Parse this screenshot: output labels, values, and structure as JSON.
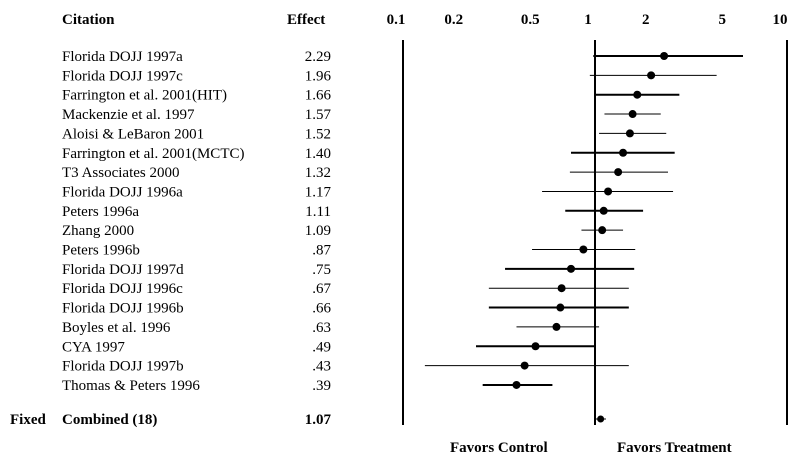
{
  "chart_data": {
    "type": "forest",
    "headers": {
      "citation": "Citation",
      "effect": "Effect"
    },
    "x_ticks": [
      {
        "label": "0.1",
        "value": 0.1
      },
      {
        "label": "0.2",
        "value": 0.2
      },
      {
        "label": "0.5",
        "value": 0.5
      },
      {
        "label": "1",
        "value": 1
      },
      {
        "label": "2",
        "value": 2
      },
      {
        "label": "5",
        "value": 5
      },
      {
        "label": "10",
        "value": 10
      }
    ],
    "scale": "log",
    "reference_line": 1,
    "studies": [
      {
        "citation": "Florida DOJJ 1997a",
        "effect_label": "2.29",
        "effect": 2.29,
        "ci": [
          0.98,
          5.9
        ],
        "weight": "heavy"
      },
      {
        "citation": "Florida DOJJ 1997c",
        "effect_label": "1.96",
        "effect": 1.96,
        "ci": [
          0.94,
          4.3
        ],
        "weight": "light"
      },
      {
        "citation": "Farrington et al. 2001(HIT)",
        "effect_label": "1.66",
        "effect": 1.66,
        "ci": [
          1.0,
          2.75
        ],
        "weight": "heavy"
      },
      {
        "citation": "Mackenzie et al. 1997",
        "effect_label": "1.57",
        "effect": 1.57,
        "ci": [
          1.12,
          2.2
        ],
        "weight": "light"
      },
      {
        "citation": "Aloisi & LeBaron 2001",
        "effect_label": "1.52",
        "effect": 1.52,
        "ci": [
          1.05,
          2.35
        ],
        "weight": "light"
      },
      {
        "citation": "Farrington et al. 2001(MCTC)",
        "effect_label": "1.40",
        "effect": 1.4,
        "ci": [
          0.75,
          2.6
        ],
        "weight": "heavy"
      },
      {
        "citation": "T3 Associates 2000",
        "effect_label": "1.32",
        "effect": 1.32,
        "ci": [
          0.74,
          2.4
        ],
        "weight": "light"
      },
      {
        "citation": "Florida DOJJ 1996a",
        "effect_label": "1.17",
        "effect": 1.17,
        "ci": [
          0.53,
          2.55
        ],
        "weight": "light"
      },
      {
        "citation": "Peters 1996a",
        "effect_label": "1.11",
        "effect": 1.11,
        "ci": [
          0.7,
          1.78
        ],
        "weight": "heavy"
      },
      {
        "citation": "Zhang 2000",
        "effect_label": "1.09",
        "effect": 1.09,
        "ci": [
          0.85,
          1.4
        ],
        "weight": "light"
      },
      {
        "citation": "Peters 1996b",
        "effect_label": ".87",
        "effect": 0.87,
        "ci": [
          0.47,
          1.62
        ],
        "weight": "light"
      },
      {
        "citation": "Florida DOJJ 1997d",
        "effect_label": ".75",
        "effect": 0.75,
        "ci": [
          0.34,
          1.6
        ],
        "weight": "heavy"
      },
      {
        "citation": "Florida DOJJ 1996c",
        "effect_label": ".67",
        "effect": 0.67,
        "ci": [
          0.28,
          1.5
        ],
        "weight": "light"
      },
      {
        "citation": "Florida DOJJ 1996b",
        "effect_label": ".66",
        "effect": 0.66,
        "ci": [
          0.28,
          1.5
        ],
        "weight": "heavy"
      },
      {
        "citation": "Boyles et al. 1996",
        "effect_label": ".63",
        "effect": 0.63,
        "ci": [
          0.39,
          1.05
        ],
        "weight": "light"
      },
      {
        "citation": "CYA 1997",
        "effect_label": ".49",
        "effect": 0.49,
        "ci": [
          0.24,
          1.0
        ],
        "weight": "heavy"
      },
      {
        "citation": "Florida DOJJ 1997b",
        "effect_label": ".43",
        "effect": 0.43,
        "ci": [
          0.13,
          1.5
        ],
        "weight": "light"
      },
      {
        "citation": "Thomas & Peters 1996",
        "effect_label": ".39",
        "effect": 0.39,
        "ci": [
          0.26,
          0.6
        ],
        "weight": "heavy"
      }
    ],
    "combined": {
      "model_label": "Fixed",
      "citation": "Combined (18)",
      "effect_label": "1.07",
      "effect": 1.07,
      "ci": [
        1.01,
        1.14
      ]
    },
    "direction_labels": {
      "left": "Favors Control",
      "right": "Favors Treatment"
    }
  }
}
